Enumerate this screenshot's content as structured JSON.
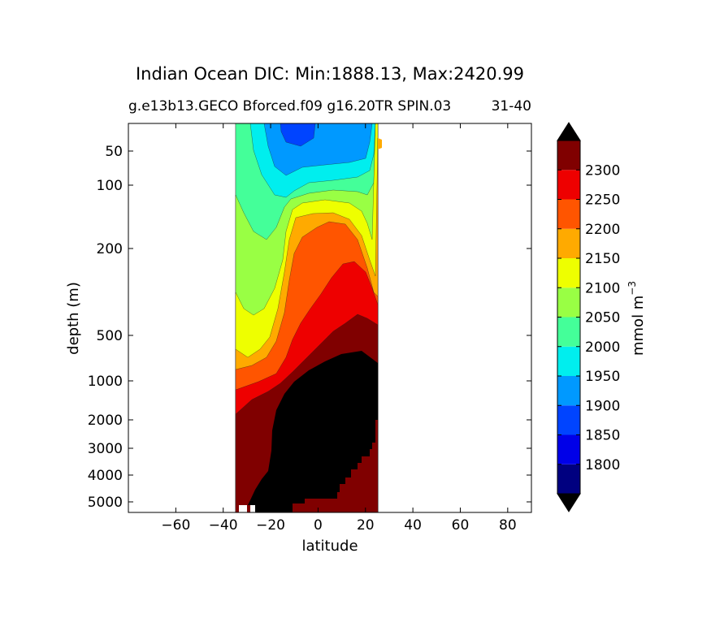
{
  "chart_data": {
    "type": "contourf",
    "title": "Indian Ocean DIC: Min:1888.13, Max:2420.99",
    "subtitle_left": "g.e13b13.GECO Bforced.f09 g16.20TR SPIN.03",
    "subtitle_right": "31-40",
    "xlabel": "latitude",
    "ylabel": "depth (m)",
    "xlim": [
      -80,
      90
    ],
    "xticks": [
      -60,
      -40,
      -20,
      0,
      20,
      40,
      60,
      80
    ],
    "xtick_labels": [
      "−60",
      "−40",
      "−20",
      "0",
      "20",
      "40",
      "60",
      "80"
    ],
    "yticks": [
      50,
      100,
      200,
      500,
      1000,
      2000,
      3000,
      4000,
      5000
    ],
    "yscale": "irregular depth (level index)",
    "data_lat_range": [
      -34,
      26
    ],
    "colorbar": {
      "label": "mmol m",
      "label_exponent": "−3",
      "levels": [
        1750,
        1800,
        1850,
        1900,
        1950,
        2000,
        2050,
        2100,
        2150,
        2200,
        2250,
        2300,
        2350
      ],
      "tick_labels": [
        "1800",
        "1850",
        "1900",
        "1950",
        "2000",
        "2050",
        "2100",
        "2150",
        "2200",
        "2250",
        "2300"
      ],
      "colors": [
        "#000080",
        "#0000e8",
        "#0044ff",
        "#0099ff",
        "#00eeee",
        "#44ff99",
        "#99ff44",
        "#eeff00",
        "#ffaa00",
        "#ff5500",
        "#ee0000",
        "#800000"
      ],
      "extend": "both",
      "over_color": "#000000",
      "under_color": "#000000"
    },
    "colors": {
      "land_mask": "#000000",
      "background": "#ffffff"
    }
  }
}
